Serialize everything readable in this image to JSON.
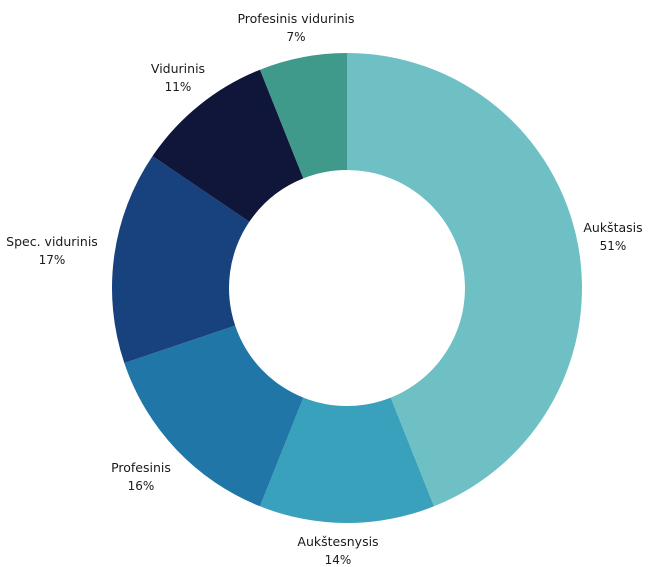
{
  "chart_data": {
    "type": "pie",
    "donut": true,
    "title": "",
    "slices": [
      {
        "label": "Aukštasis",
        "value_label": "51%",
        "value": 51,
        "color": "#6fc0c4"
      },
      {
        "label": "Aukštesnysis",
        "value_label": "14%",
        "value": 14,
        "color": "#3aa1bd"
      },
      {
        "label": "Profesinis",
        "value_label": "16%",
        "value": 16,
        "color": "#2176a8"
      },
      {
        "label": "Spec. vidurinis",
        "value_label": "17%",
        "value": 17,
        "color": "#17427e"
      },
      {
        "label": "Vidurinis",
        "value_label": "11%",
        "value": 11,
        "color": "#0f1639"
      },
      {
        "label": "Profesinis vidurinis",
        "value_label": "7%",
        "value": 7,
        "color": "#3f9a8c"
      }
    ]
  }
}
